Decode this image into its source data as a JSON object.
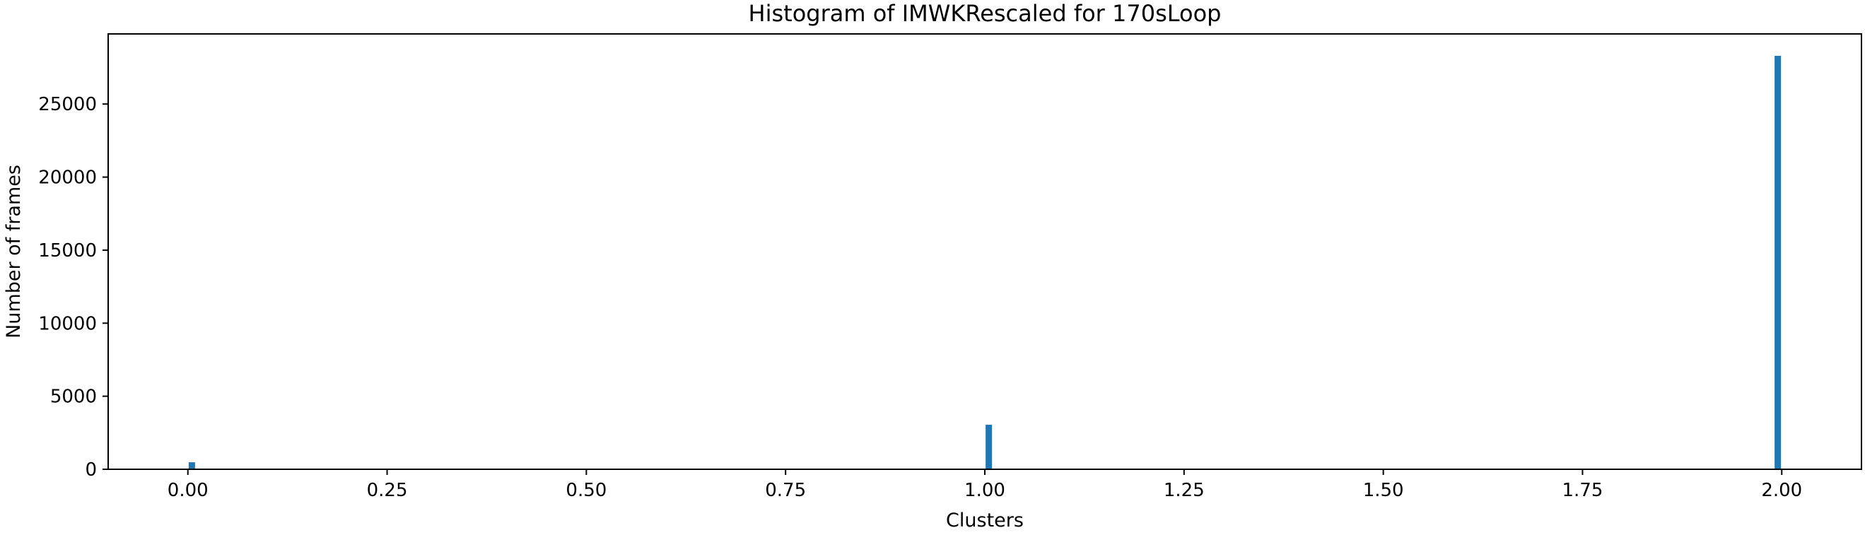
{
  "chart_data": {
    "type": "bar",
    "title": "Histogram of IMWKRescaled for 170sLoop",
    "xlabel": "Clusters",
    "ylabel": "Number of frames",
    "xlim": [
      -0.1,
      2.1
    ],
    "ylim": [
      0,
      29800
    ],
    "xticks": [
      0.0,
      0.25,
      0.5,
      0.75,
      1.0,
      1.25,
      1.5,
      1.75,
      2.0
    ],
    "xtick_labels": [
      "0.00",
      "0.25",
      "0.50",
      "0.75",
      "1.00",
      "1.25",
      "1.50",
      "1.75",
      "2.00"
    ],
    "yticks": [
      0,
      5000,
      10000,
      15000,
      20000,
      25000
    ],
    "ytick_labels": [
      "0",
      "5000",
      "10000",
      "15000",
      "20000",
      "25000"
    ],
    "bar_width": 0.008,
    "bars": [
      {
        "x": 0.005,
        "value": 480
      },
      {
        "x": 1.005,
        "value": 3050
      },
      {
        "x": 1.995,
        "value": 28300
      }
    ],
    "color": "#1f77b4",
    "grid": false,
    "legend": "none"
  }
}
